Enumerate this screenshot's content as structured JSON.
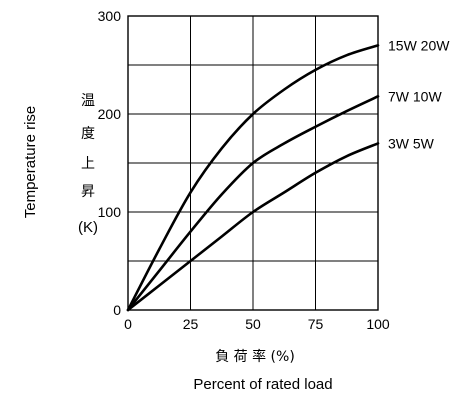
{
  "chart_data": {
    "type": "line",
    "title": "",
    "xlabel_jp": "負 荷 率 (%)",
    "xlabel": "Percent of rated load",
    "ylabel": "Temperature rise",
    "ylabel_jp": [
      "温",
      "度",
      "上",
      "昇"
    ],
    "yunit": "(K)",
    "xlim": [
      0,
      100
    ],
    "ylim": [
      0,
      300
    ],
    "xticks": [
      "0",
      "25",
      "50",
      "75",
      "100"
    ],
    "yticks": [
      "0",
      "100",
      "200",
      "300"
    ],
    "grid": true,
    "legend_placement": "right-of-lines",
    "series": [
      {
        "name": "15W 20W",
        "x": [
          0,
          12.5,
          25,
          37.5,
          50,
          62.5,
          75,
          87.5,
          100
        ],
        "values": [
          0,
          62,
          120,
          165,
          200,
          225,
          245,
          260,
          270
        ]
      },
      {
        "name": "7W 10W",
        "x": [
          0,
          12.5,
          25,
          37.5,
          50,
          62.5,
          75,
          87.5,
          100
        ],
        "values": [
          0,
          40,
          80,
          118,
          150,
          170,
          187,
          203,
          218
        ]
      },
      {
        "name": "3W 5W",
        "x": [
          0,
          12.5,
          25,
          37.5,
          50,
          62.5,
          75,
          87.5,
          100
        ],
        "values": [
          0,
          25,
          50,
          75,
          100,
          120,
          140,
          157,
          170
        ]
      }
    ]
  }
}
